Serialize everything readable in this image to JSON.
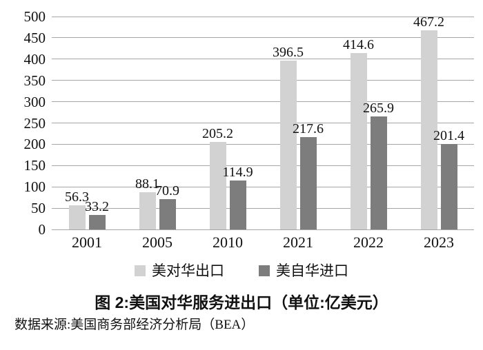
{
  "chart_data": {
    "type": "bar",
    "categories": [
      "2001",
      "2005",
      "2010",
      "2021",
      "2022",
      "2023"
    ],
    "series": [
      {
        "name": "美对华出口",
        "color": "#d2d2d2",
        "values": [
          56.3,
          88.1,
          205.2,
          396.5,
          414.6,
          467.2
        ]
      },
      {
        "name": "美自华进口",
        "color": "#7d7d7d",
        "values": [
          33.2,
          70.9,
          114.9,
          217.6,
          265.9,
          201.4
        ]
      }
    ],
    "title": "图 2:美国对华服务进出口（单位:亿美元）",
    "source": "数据来源:美国商务部经济分析局（BEA）",
    "xlabel": "",
    "ylabel": "",
    "ylim": [
      0,
      500
    ],
    "ytick_step": 50,
    "grid": true,
    "gridline_color": "#a9a4a4",
    "legend_position": "bottom",
    "bar_value_labels": true
  }
}
